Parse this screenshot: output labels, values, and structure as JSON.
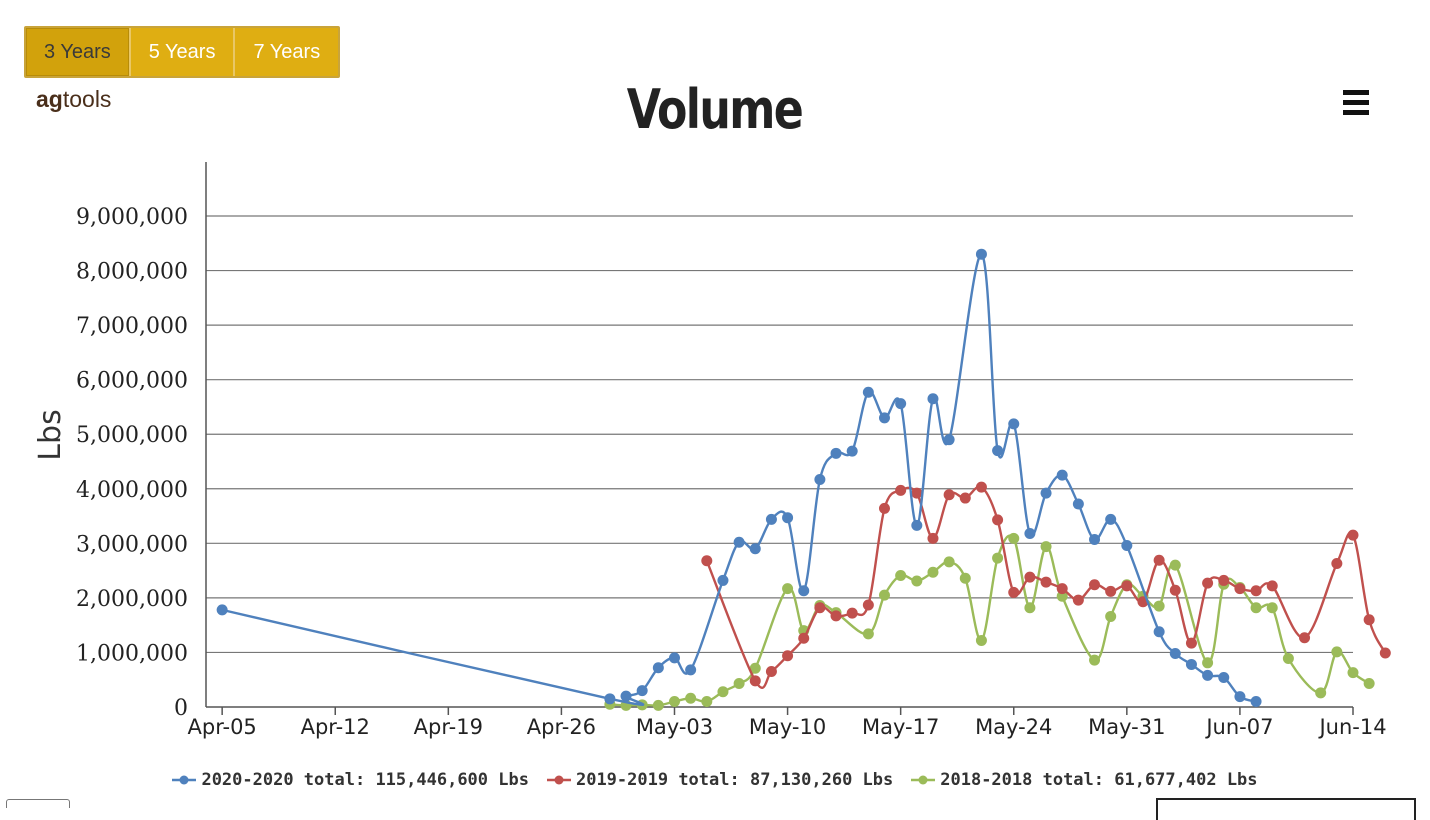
{
  "controls": {
    "range_buttons": [
      {
        "label": "3 Years",
        "active": true
      },
      {
        "label": "5 Years",
        "active": false
      },
      {
        "label": "7 Years",
        "active": false
      }
    ],
    "logo_bold": "ag",
    "logo_rest": "tools",
    "menu_icon": "hamburger-menu-icon"
  },
  "chart_data": {
    "type": "line",
    "title": "Volume",
    "xlabel": "",
    "ylabel": "Lbs",
    "ylim": [
      0,
      9000000
    ],
    "yticks": [
      0,
      1000000,
      2000000,
      3000000,
      4000000,
      5000000,
      6000000,
      7000000,
      8000000,
      9000000
    ],
    "ytick_labels": [
      "0",
      "1,000,000",
      "2,000,000",
      "3,000,000",
      "4,000,000",
      "5,000,000",
      "6,000,000",
      "7,000,000",
      "8,000,000",
      "9,000,000"
    ],
    "xlim": [
      "04-04",
      "06-14"
    ],
    "xtick_dates": [
      "04-05",
      "04-12",
      "04-19",
      "04-26",
      "05-03",
      "05-10",
      "05-17",
      "05-24",
      "05-31",
      "06-07",
      "06-14"
    ],
    "xtick_labels": [
      "Apr-05",
      "Apr-12",
      "Apr-19",
      "Apr-26",
      "May-03",
      "May-10",
      "May-17",
      "May-24",
      "May-31",
      "Jun-07",
      "Jun-14"
    ],
    "grid": "horizontal",
    "legend_position": "bottom",
    "series": [
      {
        "name": "2020-2020 total: 115,446,600 Lbs",
        "color": "#4f81bd",
        "smooth": false,
        "points": [
          [
            "04-05",
            1780000
          ],
          [
            "04-29",
            150000
          ],
          [
            "04-30",
            200000
          ],
          [
            "05-01",
            300000
          ],
          [
            "05-02",
            720000
          ],
          [
            "05-03",
            900000
          ],
          [
            "05-04",
            680000
          ],
          [
            "05-06",
            2320000
          ],
          [
            "05-07",
            3020000
          ],
          [
            "05-08",
            2900000
          ],
          [
            "05-09",
            3440000
          ],
          [
            "05-10",
            3470000
          ],
          [
            "05-11",
            2130000
          ],
          [
            "05-12",
            4170000
          ],
          [
            "05-13",
            4650000
          ],
          [
            "05-14",
            4690000
          ],
          [
            "05-15",
            5770000
          ],
          [
            "05-16",
            5300000
          ],
          [
            "05-17",
            5560000
          ],
          [
            "05-18",
            3330000
          ],
          [
            "05-19",
            5650000
          ],
          [
            "05-20",
            4900000
          ],
          [
            "05-22",
            8300000
          ],
          [
            "05-23",
            4700000
          ],
          [
            "05-24",
            5190000
          ],
          [
            "05-25",
            3180000
          ],
          [
            "05-26",
            3920000
          ],
          [
            "05-27",
            4250000
          ],
          [
            "05-28",
            3720000
          ],
          [
            "05-29",
            3070000
          ],
          [
            "05-30",
            3440000
          ],
          [
            "05-31",
            2960000
          ],
          [
            "06-02",
            1380000
          ],
          [
            "06-03",
            980000
          ],
          [
            "06-04",
            780000
          ],
          [
            "06-05",
            580000
          ],
          [
            "06-06",
            540000
          ],
          [
            "06-07",
            190000
          ],
          [
            "06-08",
            100000
          ]
        ]
      },
      {
        "name": "2019-2019 total: 87,130,260 Lbs",
        "color": "#c0504d",
        "smooth": true,
        "points": [
          [
            "05-05",
            2680000
          ],
          [
            "05-08",
            480000
          ],
          [
            "05-09",
            650000
          ],
          [
            "05-10",
            940000
          ],
          [
            "05-11",
            1260000
          ],
          [
            "05-12",
            1820000
          ],
          [
            "05-13",
            1670000
          ],
          [
            "05-14",
            1720000
          ],
          [
            "05-15",
            1870000
          ],
          [
            "05-16",
            3640000
          ],
          [
            "05-17",
            3970000
          ],
          [
            "05-18",
            3920000
          ],
          [
            "05-19",
            3090000
          ],
          [
            "05-20",
            3890000
          ],
          [
            "05-21",
            3830000
          ],
          [
            "05-22",
            4030000
          ],
          [
            "05-23",
            3430000
          ],
          [
            "05-24",
            2100000
          ],
          [
            "05-25",
            2380000
          ],
          [
            "05-26",
            2290000
          ],
          [
            "05-27",
            2170000
          ],
          [
            "05-28",
            1960000
          ],
          [
            "05-29",
            2240000
          ],
          [
            "05-30",
            2120000
          ],
          [
            "05-31",
            2220000
          ],
          [
            "06-01",
            1930000
          ],
          [
            "06-02",
            2690000
          ],
          [
            "06-03",
            2140000
          ],
          [
            "06-04",
            1170000
          ],
          [
            "06-05",
            2270000
          ],
          [
            "06-06",
            2320000
          ],
          [
            "06-07",
            2170000
          ],
          [
            "06-08",
            2130000
          ],
          [
            "06-09",
            2220000
          ],
          [
            "06-11",
            1270000
          ],
          [
            "06-13",
            2630000
          ],
          [
            "06-14",
            3150000
          ],
          [
            "06-15",
            1600000
          ],
          [
            "06-16",
            990000
          ]
        ]
      },
      {
        "name": "2018-2018 total: 61,677,402 Lbs",
        "color": "#9bbb59",
        "smooth": true,
        "points": [
          [
            "04-29",
            50000
          ],
          [
            "04-30",
            30000
          ],
          [
            "05-01",
            40000
          ],
          [
            "05-02",
            30000
          ],
          [
            "05-03",
            100000
          ],
          [
            "05-04",
            160000
          ],
          [
            "05-05",
            100000
          ],
          [
            "05-06",
            280000
          ],
          [
            "05-07",
            430000
          ],
          [
            "05-08",
            710000
          ],
          [
            "05-10",
            2170000
          ],
          [
            "05-11",
            1400000
          ],
          [
            "05-12",
            1860000
          ],
          [
            "05-13",
            1730000
          ],
          [
            "05-15",
            1340000
          ],
          [
            "05-16",
            2050000
          ],
          [
            "05-17",
            2410000
          ],
          [
            "05-18",
            2310000
          ],
          [
            "05-19",
            2470000
          ],
          [
            "05-20",
            2660000
          ],
          [
            "05-21",
            2360000
          ],
          [
            "05-22",
            1220000
          ],
          [
            "05-23",
            2730000
          ],
          [
            "05-24",
            3090000
          ],
          [
            "05-25",
            1820000
          ],
          [
            "05-26",
            2940000
          ],
          [
            "05-27",
            2030000
          ],
          [
            "05-29",
            860000
          ],
          [
            "05-30",
            1660000
          ],
          [
            "05-31",
            2240000
          ],
          [
            "06-01",
            2030000
          ],
          [
            "06-02",
            1850000
          ],
          [
            "06-03",
            2600000
          ],
          [
            "06-05",
            810000
          ],
          [
            "06-06",
            2250000
          ],
          [
            "06-07",
            2190000
          ],
          [
            "06-08",
            1820000
          ],
          [
            "06-09",
            1820000
          ],
          [
            "06-10",
            890000
          ],
          [
            "06-12",
            260000
          ],
          [
            "06-13",
            1010000
          ],
          [
            "06-14",
            630000
          ],
          [
            "06-15",
            430000
          ]
        ]
      }
    ]
  }
}
